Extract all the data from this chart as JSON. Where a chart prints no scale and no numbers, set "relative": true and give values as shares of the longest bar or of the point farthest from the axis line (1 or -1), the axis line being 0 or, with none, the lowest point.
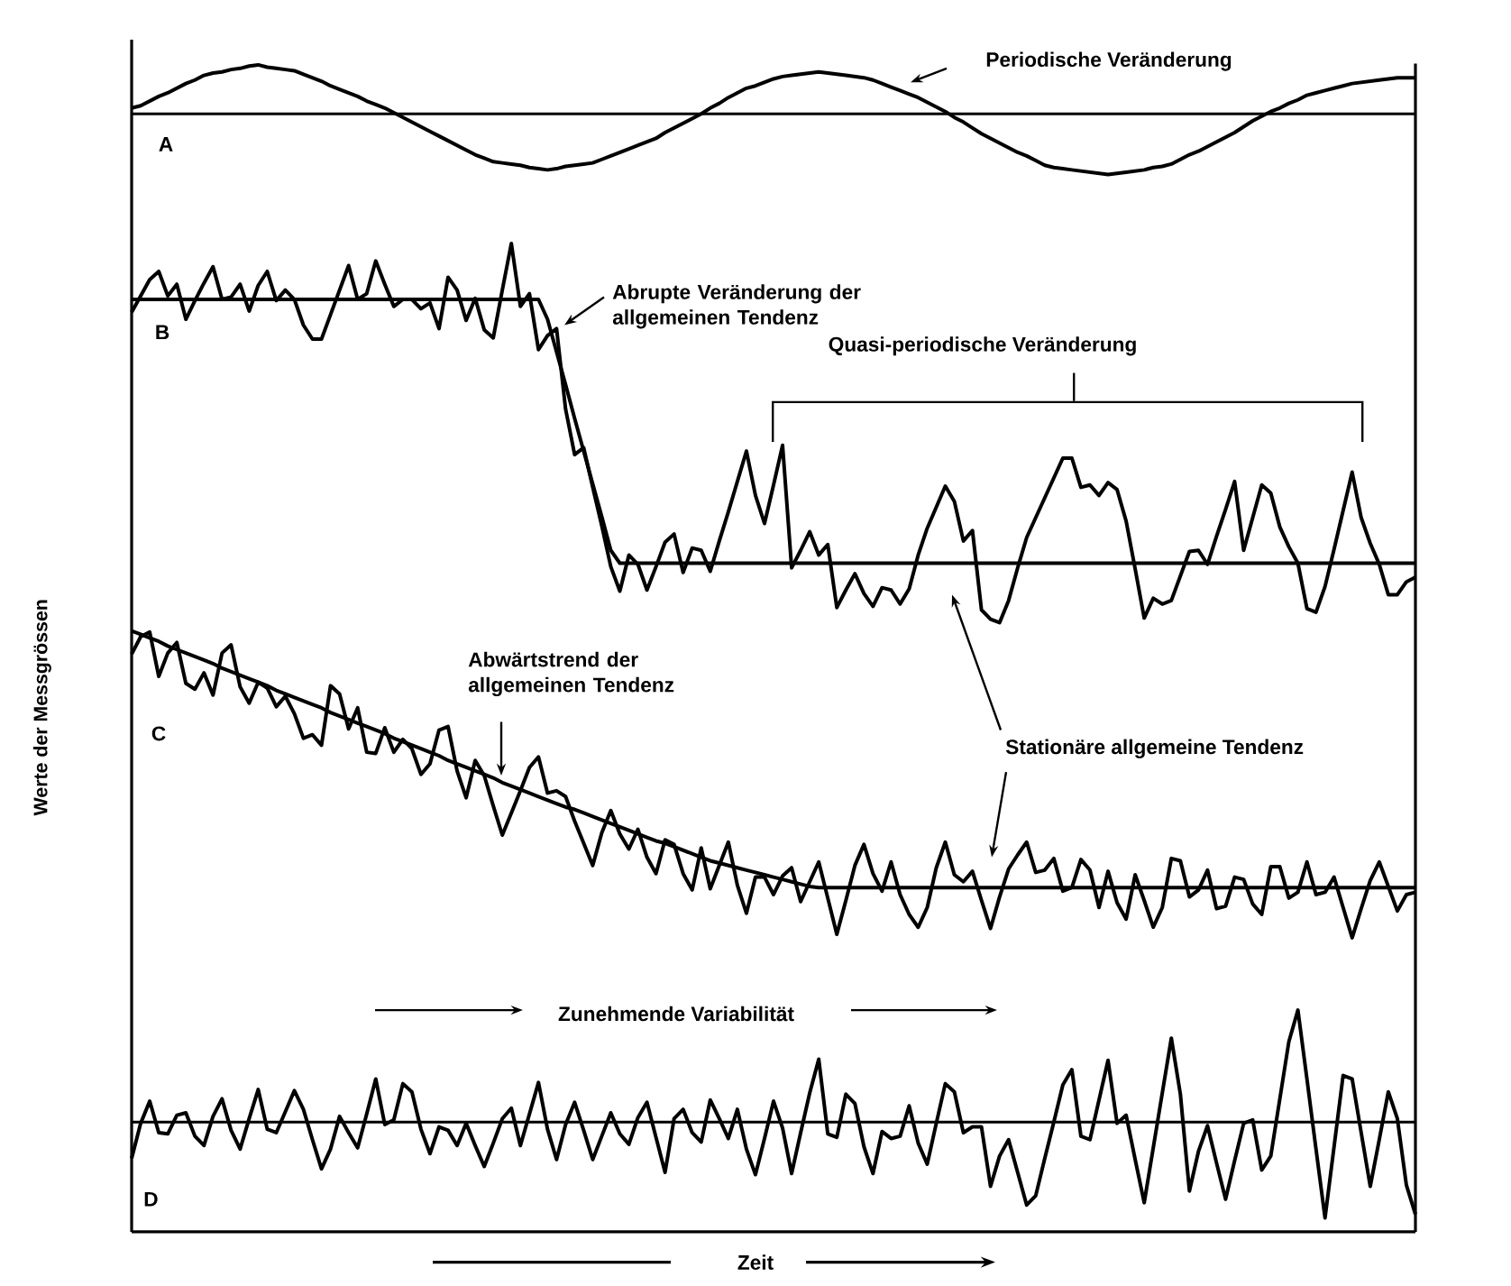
{
  "chart_data": {
    "type": "line",
    "relative": true,
    "categories": [
      null,
      null,
      null,
      null,
      null,
      null,
      null,
      null,
      null,
      null,
      null,
      null,
      null,
      null,
      null,
      null,
      null,
      null,
      null,
      null,
      null,
      null,
      null,
      null,
      null,
      null,
      null,
      null,
      null,
      null,
      null,
      null,
      null,
      null,
      null,
      null,
      null,
      null,
      null,
      null,
      null,
      null,
      null,
      null,
      null,
      null,
      null,
      null,
      null,
      null,
      null,
      null,
      null,
      null,
      null,
      null,
      null,
      null,
      null,
      null,
      null,
      null,
      null,
      null,
      null,
      null,
      null,
      null,
      null,
      null,
      null,
      null,
      null,
      null,
      null,
      null,
      null,
      null,
      null,
      null,
      null,
      null,
      null,
      null,
      null,
      null,
      null,
      null,
      null,
      null,
      null,
      null,
      null,
      null,
      null,
      null,
      null,
      null,
      null,
      null,
      null,
      null,
      null,
      null,
      null,
      null,
      null,
      null,
      null,
      null,
      null,
      null,
      null,
      null,
      null,
      null,
      null,
      null,
      null,
      null,
      null,
      null,
      null,
      null,
      null,
      null,
      null,
      null,
      null,
      null,
      null,
      null,
      null,
      null,
      null,
      null,
      null,
      null,
      null,
      null,
      null,
      null,
      null
    ],
    "xlabel": "Zeit",
    "ylabel": "Werte der Messgrössen",
    "annotations": [
      "Periodische Veränderung",
      "A",
      "B",
      "Abrupte Veränderung der allgemeinen Tendenz",
      "Quasi-periodische Veränderung",
      "C",
      "Abwärtstrend der allgemeinen Tendenz",
      "Stationäre allgemeine Tendenz",
      "Zunehmende Variabilität",
      "D"
    ],
    "ref_lines": [
      {
        "axis": "y",
        "value": 0.958,
        "color": "#000000"
      },
      {
        "axis": "y",
        "value": 0.094,
        "color": "#000000"
      }
    ],
    "series": [
      {
        "color": "#000000",
        "values": [
          0.963,
          0.965,
          0.969,
          0.973,
          0.976,
          0.98,
          0.984,
          0.987,
          0.991,
          0.993,
          0.994,
          0.996,
          0.997,
          0.999,
          1.0,
          0.998,
          0.997,
          0.996,
          0.995,
          0.992,
          0.989,
          0.986,
          0.982,
          0.979,
          0.976,
          0.973,
          0.969,
          0.966,
          0.963,
          0.959,
          0.955,
          0.951,
          0.947,
          0.943,
          0.939,
          0.935,
          0.931,
          0.927,
          0.923,
          0.92,
          0.917,
          0.916,
          0.915,
          0.914,
          0.912,
          0.911,
          0.91,
          0.911,
          0.913,
          0.914,
          0.915,
          0.916,
          0.919,
          0.922,
          0.925,
          0.928,
          0.931,
          0.934,
          0.937,
          0.942,
          0.946,
          0.95,
          0.954,
          0.958,
          0.963,
          0.967,
          0.972,
          0.976,
          0.98,
          0.982,
          0.985,
          0.988,
          0.99,
          0.991,
          0.992,
          0.993,
          0.994,
          0.993,
          0.992,
          0.991,
          0.99,
          0.989,
          0.987,
          0.984,
          0.981,
          0.978,
          0.975,
          0.972,
          0.968,
          0.964,
          0.96,
          0.955,
          0.951,
          0.946,
          0.941,
          0.937,
          0.933,
          0.929,
          0.925,
          0.922,
          0.918,
          0.914,
          0.912,
          0.911,
          0.91,
          0.909,
          0.908,
          0.907,
          0.906,
          0.907,
          0.908,
          0.909,
          0.91,
          0.912,
          0.913,
          0.915,
          0.919,
          0.923,
          0.926,
          0.93,
          0.934,
          0.938,
          0.942,
          0.947,
          0.952,
          0.956,
          0.96,
          0.963,
          0.967,
          0.97,
          0.974,
          0.976,
          0.978,
          0.98,
          0.982,
          0.984,
          0.985,
          0.986,
          0.987,
          0.988,
          0.989,
          0.989,
          0.989
        ]
      },
      {
        "color": "#000000",
        "values": [
          0.788,
          0.802,
          0.816,
          0.823,
          0.802,
          0.812,
          0.782,
          0.798,
          0.813,
          0.827,
          0.799,
          0.801,
          0.812,
          0.789,
          0.811,
          0.823,
          0.798,
          0.807,
          0.799,
          0.777,
          0.765,
          0.765,
          0.786,
          0.807,
          0.828,
          0.799,
          0.804,
          0.832,
          0.812,
          0.793,
          0.799,
          0.799,
          0.791,
          0.796,
          0.774,
          0.818,
          0.807,
          0.781,
          0.8,
          0.773,
          0.766,
          0.807,
          0.847,
          0.793,
          0.804,
          0.756,
          0.768,
          0.774,
          0.705,
          0.666,
          0.672,
          0.638,
          0.605,
          0.57,
          0.549,
          0.58,
          0.572,
          0.55,
          0.57,
          0.591,
          0.598,
          0.565,
          0.586,
          0.584,
          0.566,
          0.592,
          0.617,
          0.643,
          0.669,
          0.631,
          0.607,
          0.64,
          0.674,
          0.569,
          0.584,
          0.6,
          0.58,
          0.589,
          0.535,
          0.55,
          0.564,
          0.547,
          0.536,
          0.552,
          0.55,
          0.538,
          0.551,
          0.58,
          0.603,
          0.621,
          0.639,
          0.626,
          0.592,
          0.601,
          0.533,
          0.525,
          0.522,
          0.541,
          0.569,
          0.595,
          0.612,
          0.629,
          0.646,
          0.663,
          0.663,
          0.638,
          0.64,
          0.631,
          0.642,
          0.636,
          0.609,
          0.568,
          0.526,
          0.543,
          0.538,
          0.541,
          0.562,
          0.583,
          0.584,
          0.572,
          0.596,
          0.619,
          0.643,
          0.584,
          0.612,
          0.64,
          0.633,
          0.604,
          0.587,
          0.573,
          0.534,
          0.531,
          0.553,
          0.585,
          0.618,
          0.651,
          0.612,
          0.59,
          0.572,
          0.546,
          0.546,
          0.557,
          0.561
        ]
      },
      {
        "color": "#000000",
        "values": [
          0.799,
          0.799,
          0.799,
          0.799,
          0.799,
          0.799,
          0.799,
          0.799,
          0.799,
          0.799,
          0.799,
          0.799,
          0.799,
          0.799,
          0.799,
          0.799,
          0.799,
          0.799,
          0.799,
          0.799,
          0.799,
          0.799,
          0.799,
          0.799,
          0.799,
          0.799,
          0.799,
          0.799,
          0.799,
          0.799,
          0.799,
          0.799,
          0.799,
          0.799,
          0.799,
          0.799,
          0.799,
          0.799,
          0.799,
          0.799,
          0.799,
          0.799,
          0.799,
          0.799,
          0.799,
          0.799,
          0.782,
          0.754,
          0.726,
          0.697,
          0.669,
          0.641,
          0.613,
          0.584,
          0.573,
          0.573,
          0.573,
          0.573,
          0.573,
          0.573,
          0.573,
          0.573,
          0.573,
          0.573,
          0.573,
          0.573,
          0.573,
          0.573,
          0.573,
          0.573,
          0.573,
          0.573,
          0.573,
          0.573,
          0.573,
          0.573,
          0.573,
          0.573,
          0.573,
          0.573,
          0.573,
          0.573,
          0.573,
          0.573,
          0.573,
          0.573,
          0.573,
          0.573,
          0.573,
          0.573,
          0.573,
          0.573,
          0.573,
          0.573,
          0.573,
          0.573,
          0.573,
          0.573,
          0.573,
          0.573,
          0.573,
          0.573,
          0.573,
          0.573,
          0.573,
          0.573,
          0.573,
          0.573,
          0.573,
          0.573,
          0.573,
          0.573,
          0.573,
          0.573,
          0.573,
          0.573,
          0.573,
          0.573,
          0.573,
          0.573,
          0.573,
          0.573,
          0.573,
          0.573,
          0.573,
          0.573,
          0.573,
          0.573,
          0.573,
          0.573,
          0.573,
          0.573,
          0.573,
          0.573,
          0.573,
          0.573,
          0.573,
          0.573,
          0.573,
          0.573,
          0.573,
          0.573,
          0.573
        ]
      },
      {
        "color": "#000000",
        "values": [
          0.495,
          0.51,
          0.514,
          0.476,
          0.496,
          0.505,
          0.47,
          0.465,
          0.479,
          0.46,
          0.496,
          0.503,
          0.467,
          0.453,
          0.471,
          0.466,
          0.45,
          0.459,
          0.444,
          0.423,
          0.426,
          0.417,
          0.468,
          0.461,
          0.431,
          0.449,
          0.411,
          0.41,
          0.432,
          0.411,
          0.422,
          0.414,
          0.392,
          0.401,
          0.43,
          0.433,
          0.395,
          0.372,
          0.404,
          0.391,
          0.365,
          0.34,
          0.359,
          0.378,
          0.398,
          0.407,
          0.376,
          0.378,
          0.373,
          0.352,
          0.333,
          0.314,
          0.342,
          0.361,
          0.341,
          0.328,
          0.345,
          0.321,
          0.307,
          0.336,
          0.332,
          0.307,
          0.293,
          0.329,
          0.294,
          0.314,
          0.334,
          0.297,
          0.273,
          0.304,
          0.304,
          0.289,
          0.305,
          0.312,
          0.283,
          0.3,
          0.317,
          0.286,
          0.255,
          0.284,
          0.314,
          0.332,
          0.307,
          0.292,
          0.317,
          0.289,
          0.272,
          0.261,
          0.278,
          0.312,
          0.334,
          0.306,
          0.3,
          0.309,
          0.284,
          0.26,
          0.287,
          0.311,
          0.323,
          0.334,
          0.308,
          0.31,
          0.32,
          0.292,
          0.295,
          0.319,
          0.31,
          0.278,
          0.309,
          0.282,
          0.268,
          0.306,
          0.284,
          0.261,
          0.278,
          0.32,
          0.318,
          0.287,
          0.293,
          0.31,
          0.277,
          0.279,
          0.304,
          0.302,
          0.281,
          0.272,
          0.313,
          0.313,
          0.286,
          0.291,
          0.317,
          0.289,
          0.291,
          0.304,
          0.278,
          0.252,
          0.277,
          0.301,
          0.317,
          0.296,
          0.275,
          0.289,
          0.291
        ]
      },
      {
        "color": "#000000",
        "values": [
          0.515,
          0.512,
          0.509,
          0.506,
          0.502,
          0.499,
          0.496,
          0.493,
          0.49,
          0.487,
          0.483,
          0.48,
          0.477,
          0.474,
          0.471,
          0.468,
          0.464,
          0.461,
          0.458,
          0.455,
          0.452,
          0.449,
          0.445,
          0.442,
          0.439,
          0.436,
          0.433,
          0.43,
          0.427,
          0.423,
          0.42,
          0.417,
          0.414,
          0.411,
          0.408,
          0.404,
          0.401,
          0.398,
          0.395,
          0.392,
          0.389,
          0.385,
          0.382,
          0.379,
          0.376,
          0.373,
          0.37,
          0.367,
          0.364,
          0.362,
          0.359,
          0.356,
          0.353,
          0.35,
          0.347,
          0.344,
          0.341,
          0.338,
          0.335,
          0.333,
          0.33,
          0.327,
          0.324,
          0.321,
          0.318,
          0.316,
          0.314,
          0.312,
          0.31,
          0.308,
          0.306,
          0.304,
          0.302,
          0.3,
          0.298,
          0.296,
          0.295,
          0.295,
          0.295,
          0.295,
          0.295,
          0.295,
          0.295,
          0.295,
          0.295,
          0.295,
          0.295,
          0.295,
          0.295,
          0.295,
          0.295,
          0.295,
          0.295,
          0.295,
          0.295,
          0.295,
          0.295,
          0.295,
          0.295,
          0.295,
          0.295,
          0.295,
          0.295,
          0.295,
          0.295,
          0.295,
          0.295,
          0.295,
          0.295,
          0.295,
          0.295,
          0.295,
          0.295,
          0.295,
          0.295,
          0.295,
          0.295,
          0.295,
          0.295,
          0.295,
          0.295,
          0.295,
          0.295,
          0.295,
          0.295,
          0.295,
          0.295,
          0.295,
          0.295,
          0.295,
          0.295,
          0.295,
          0.295,
          0.295,
          0.295,
          0.295,
          0.295,
          0.295,
          0.295,
          0.295,
          0.295,
          0.295,
          0.295
        ]
      },
      {
        "color": "#000000",
        "values": [
          0.063,
          0.093,
          0.112,
          0.085,
          0.084,
          0.1,
          0.102,
          0.082,
          0.074,
          0.099,
          0.114,
          0.087,
          0.071,
          0.097,
          0.122,
          0.088,
          0.085,
          0.103,
          0.121,
          0.105,
          0.079,
          0.054,
          0.071,
          0.099,
          0.085,
          0.072,
          0.101,
          0.131,
          0.092,
          0.096,
          0.127,
          0.12,
          0.088,
          0.067,
          0.09,
          0.087,
          0.074,
          0.093,
          0.074,
          0.056,
          0.076,
          0.097,
          0.106,
          0.074,
          0.101,
          0.128,
          0.088,
          0.062,
          0.092,
          0.111,
          0.087,
          0.062,
          0.082,
          0.102,
          0.084,
          0.075,
          0.098,
          0.111,
          0.081,
          0.051,
          0.097,
          0.105,
          0.085,
          0.077,
          0.113,
          0.097,
          0.08,
          0.105,
          0.071,
          0.049,
          0.08,
          0.112,
          0.089,
          0.05,
          0.085,
          0.119,
          0.148,
          0.084,
          0.081,
          0.118,
          0.11,
          0.073,
          0.05,
          0.086,
          0.08,
          0.082,
          0.108,
          0.076,
          0.058,
          0.093,
          0.127,
          0.12,
          0.085,
          0.09,
          0.09,
          0.039,
          0.065,
          0.079,
          0.051,
          0.023,
          0.031,
          0.063,
          0.094,
          0.126,
          0.139,
          0.082,
          0.079,
          0.113,
          0.147,
          0.093,
          0.1,
          0.062,
          0.025,
          0.072,
          0.119,
          0.166,
          0.118,
          0.035,
          0.069,
          0.091,
          0.059,
          0.028,
          0.061,
          0.093,
          0.096,
          0.053,
          0.065,
          0.114,
          0.163,
          0.19,
          0.131,
          0.071,
          0.012,
          0.073,
          0.134,
          0.131,
          0.085,
          0.039,
          0.079,
          0.12,
          0.097,
          0.04,
          0.015
        ]
      }
    ]
  }
}
